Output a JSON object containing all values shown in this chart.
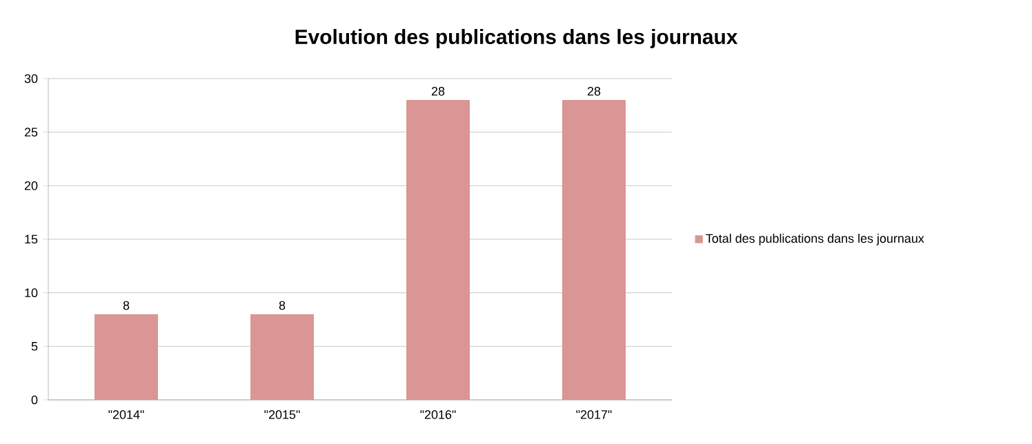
{
  "chart_data": {
    "type": "bar",
    "title": "Evolution des publications dans les journaux",
    "categories": [
      "\"2014\"",
      "\"2015\"",
      "\"2016\"",
      "\"2017\""
    ],
    "series": [
      {
        "name": "Total des publications dans les journaux",
        "color": "#d99694",
        "values": [
          8,
          8,
          28,
          28
        ]
      }
    ],
    "ylim": [
      0,
      30
    ],
    "yticks": [
      0,
      5,
      10,
      15,
      20,
      25,
      30
    ],
    "grid": "y",
    "legend": "right",
    "data_labels": true
  }
}
